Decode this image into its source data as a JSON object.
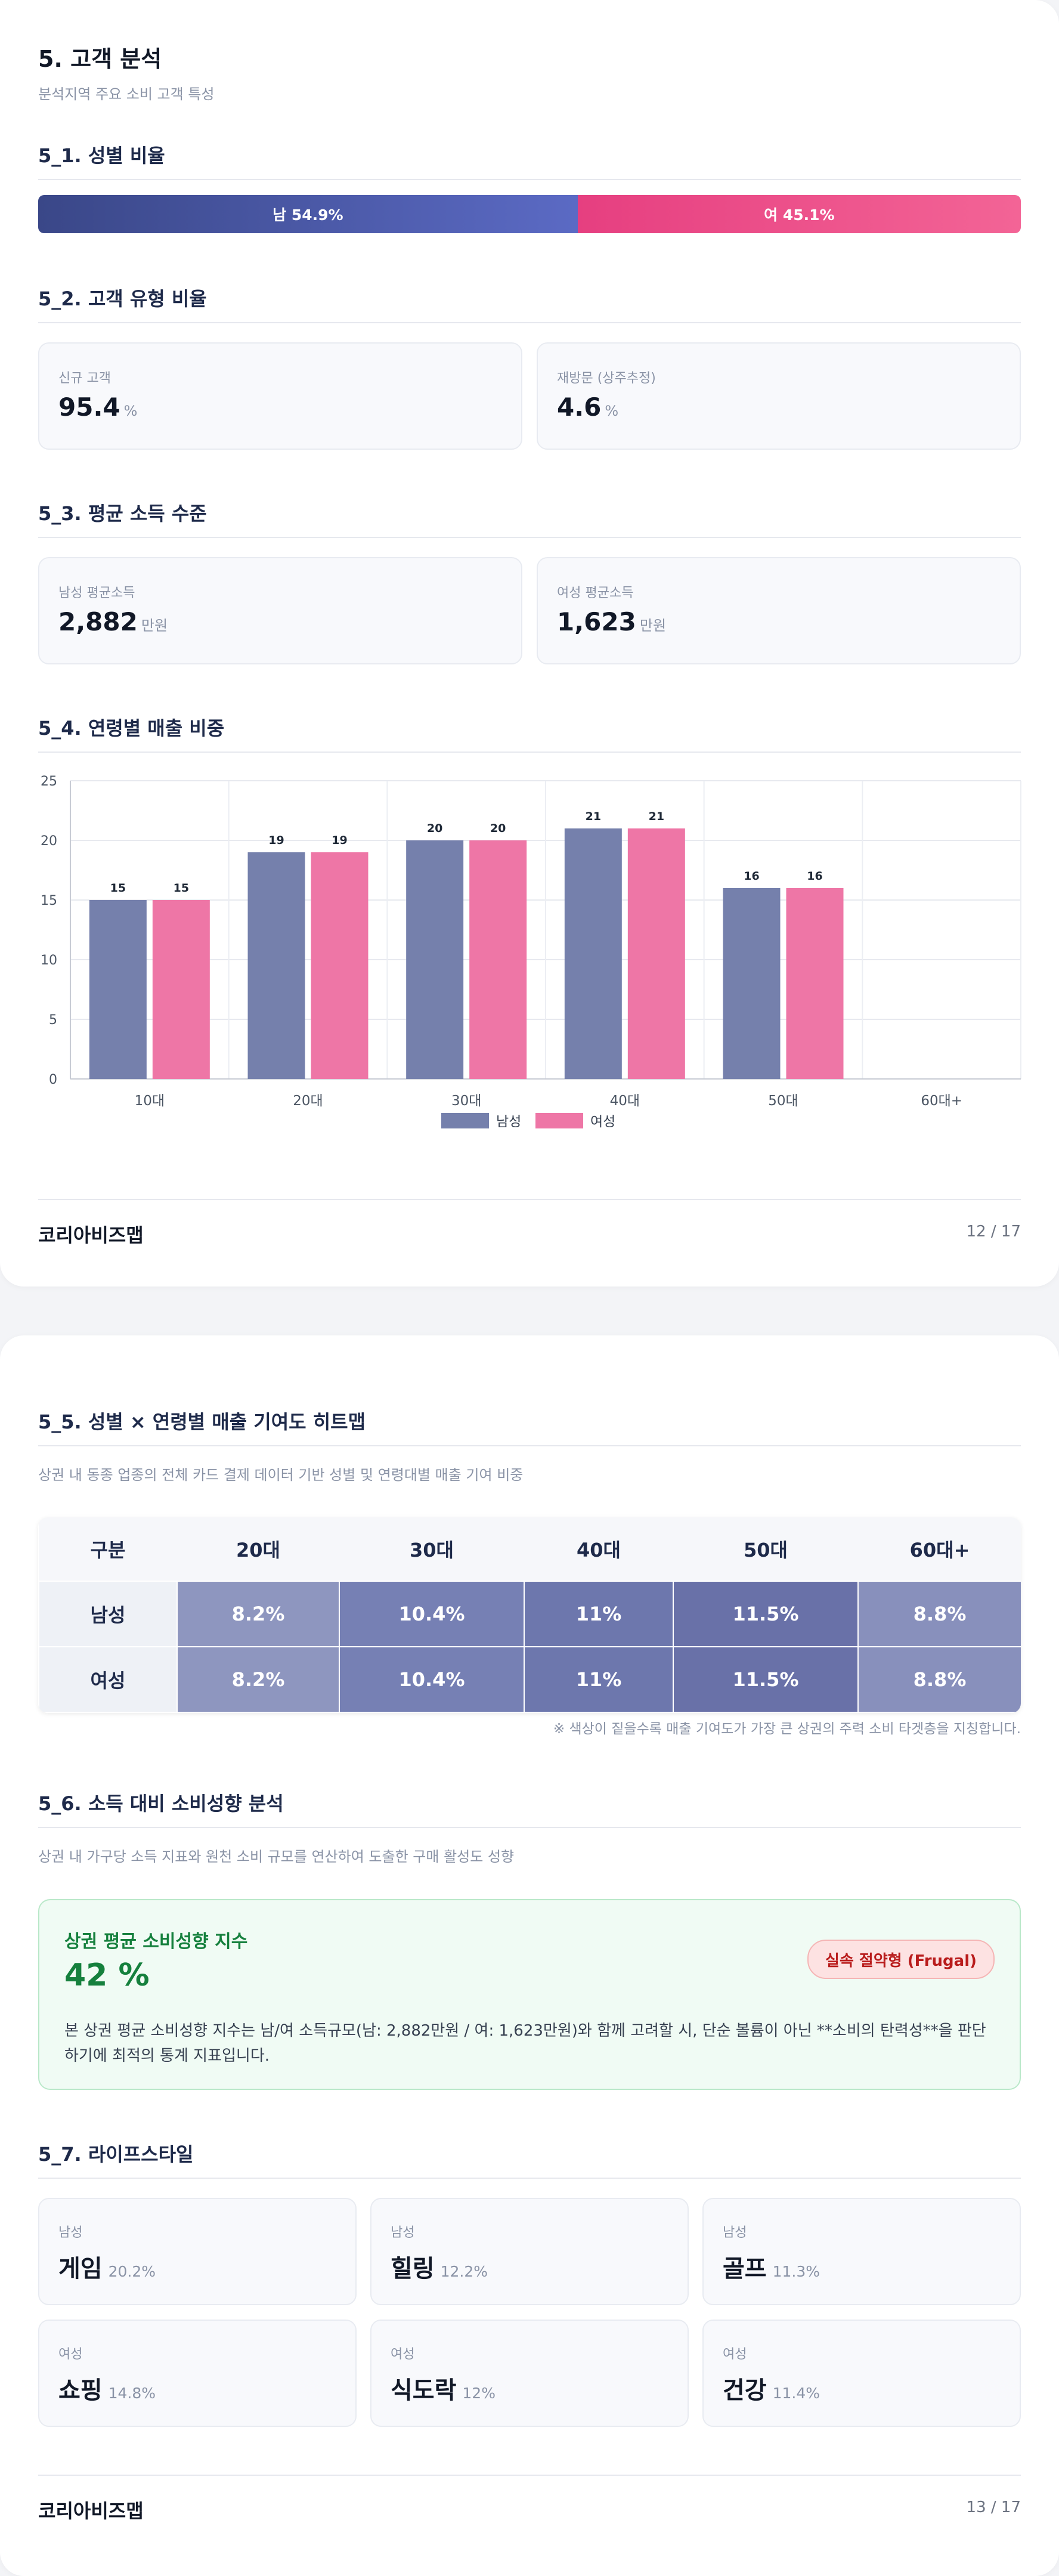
{
  "page1": {
    "title": "5. 고객 분석",
    "subtitle": "분석지역 주요 소비 고객 특성",
    "gender": {
      "heading": "5_1. 성별 비율",
      "male_label": "남 54.9%",
      "female_label": "여 45.1%",
      "male_share": 54.9,
      "colors": {
        "male": "#3d4b8f",
        "female": "#e84a86"
      }
    },
    "customer_type": {
      "heading": "5_2. 고객 유형 비율",
      "new": {
        "label": "신규 고객",
        "value": "95.4",
        "unit": "%"
      },
      "revisit": {
        "label": "재방문 (상주추정)",
        "value": "4.6",
        "unit": "%"
      }
    },
    "income": {
      "heading": "5_3. 평균 소득 수준",
      "male": {
        "label": "남성 평균소득",
        "value": "2,882",
        "unit": "만원"
      },
      "female": {
        "label": "여성 평균소득",
        "value": "1,623",
        "unit": "만원"
      }
    },
    "age_sales_heading": "5_4. 연령별 매출 비중",
    "footer": {
      "brand": "코리아비즈맵",
      "page": "12 / 17"
    }
  },
  "chart_data": {
    "type": "bar",
    "categories": [
      "10대",
      "20대",
      "30대",
      "40대",
      "50대",
      "60대+"
    ],
    "series": [
      {
        "name": "남성",
        "values": [
          15,
          19,
          20,
          21,
          16,
          null
        ],
        "color": "#7580ac"
      },
      {
        "name": "여성",
        "values": [
          15,
          19,
          20,
          21,
          16,
          null
        ],
        "color": "#ee76a6"
      }
    ],
    "ylim": [
      0,
      25
    ],
    "yticks": [
      "0",
      "5",
      "10",
      "15",
      "20",
      "25"
    ],
    "grid": true,
    "legend": "bottom-center"
  },
  "page2": {
    "heatmap": {
      "heading": "5_5. 성별 × 연령별 매출 기여도 히트맵",
      "desc": "상권 내 동종 업종의 전체 카드 결제 데이터 기반 성별 및 연령대별 매출 기여 비중",
      "corner": "구분",
      "columns": [
        "20대",
        "30대",
        "40대",
        "50대",
        "60대+"
      ],
      "rows": [
        {
          "label": "남성",
          "cells": [
            "8.2%",
            "10.4%",
            "11%",
            "11.5%",
            "8.8%"
          ]
        },
        {
          "label": "여성",
          "cells": [
            "8.2%",
            "10.4%",
            "11%",
            "11.5%",
            "8.8%"
          ]
        }
      ],
      "cell_colors": [
        "#8e96bf",
        "#7680b4",
        "#6d77ad",
        "#6971a8",
        "#8890bc"
      ],
      "note": "※ 색상이 짙을수록 매출 기여도가 가장 큰 상권의 주력 소비 타겟층을 지칭합니다."
    },
    "propensity": {
      "heading": "5_6. 소득 대비 소비성향 분석",
      "desc": "상권 내 가구당 소득 지표와 원천 소비 규모를 연산하여 도출한 구매 활성도 성향",
      "box_title": "상권 평균 소비성향 지수",
      "value": "42 %",
      "badge": "실속 절약형 (Frugal)",
      "text": "본 상권 평균 소비성향 지수는 남/여 소득규모(남: 2,882만원 / 여: 1,623만원)와 함께 고려할 시, 단순 볼륨이 아닌 **소비의 탄력성**을 판단하기에 최적의 통계 지표입니다."
    },
    "lifestyle": {
      "heading": "5_7. 라이프스타일",
      "items": [
        {
          "gender": "남성",
          "name": "게임",
          "pct": "20.2%"
        },
        {
          "gender": "남성",
          "name": "힐링",
          "pct": "12.2%"
        },
        {
          "gender": "남성",
          "name": "골프",
          "pct": "11.3%"
        },
        {
          "gender": "여성",
          "name": "쇼핑",
          "pct": "14.8%"
        },
        {
          "gender": "여성",
          "name": "식도락",
          "pct": "12%"
        },
        {
          "gender": "여성",
          "name": "건강",
          "pct": "11.4%"
        }
      ]
    },
    "footer": {
      "brand": "코리아비즈맵",
      "page": "13 / 17"
    }
  }
}
